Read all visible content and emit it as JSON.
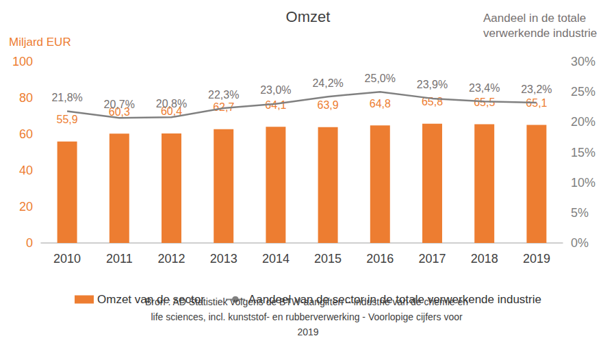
{
  "chart_data": {
    "type": "bar",
    "title": "Omzet",
    "y_label": "Miljard EUR",
    "y2_label": "Aandeel in de totale verwerkende industrie",
    "source": "Bron : AD Statistiek volgens de BTW-aangiften – industrie van de chemie en life sciences, incl. kunststof- en rubberverwerking - Voorlopige cijfers voor 2019",
    "categories": [
      "2010",
      "2011",
      "2012",
      "2013",
      "2014",
      "2015",
      "2016",
      "2017",
      "2018",
      "2019"
    ],
    "series": [
      {
        "name": "Omzet van de sector",
        "type": "bar",
        "color": "#ed7d31",
        "values": [
          55.9,
          60.3,
          60.4,
          62.7,
          64.1,
          63.9,
          64.8,
          65.8,
          65.5,
          65.1
        ],
        "value_labels": [
          "55,9",
          "60,3",
          "60,4",
          "62,7",
          "64,1",
          "63,9",
          "64,8",
          "65,8",
          "65,5",
          "65,1"
        ]
      },
      {
        "name": "Aandeel van de sector in de totale verwerkende industrie",
        "type": "line",
        "color": "#808080",
        "axis": "y2",
        "marker": "none",
        "line_style": "solid",
        "values": [
          21.8,
          20.7,
          20.8,
          22.3,
          23.0,
          24.2,
          25.0,
          23.9,
          23.4,
          23.2
        ],
        "value_labels": [
          "21,8%",
          "20,7%",
          "20,8%",
          "22,3%",
          "23,0%",
          "24,2%",
          "25,0%",
          "23,9%",
          "23,4%",
          "23,2%"
        ]
      }
    ],
    "ylim": [
      0,
      100
    ],
    "yticks": [
      0,
      20,
      40,
      60,
      80,
      100
    ],
    "y2lim": [
      0,
      30
    ],
    "y2ticks": [
      {
        "value": 0,
        "label": "0%"
      },
      {
        "value": 5,
        "label": "5%"
      },
      {
        "value": 10,
        "label": "10%"
      },
      {
        "value": 15,
        "label": "15%"
      },
      {
        "value": 20,
        "label": "20%"
      },
      {
        "value": 25,
        "label": "25%"
      },
      {
        "value": 30,
        "label": "30%"
      }
    ],
    "grid": false,
    "legend": "bottom",
    "data_labels": true
  }
}
